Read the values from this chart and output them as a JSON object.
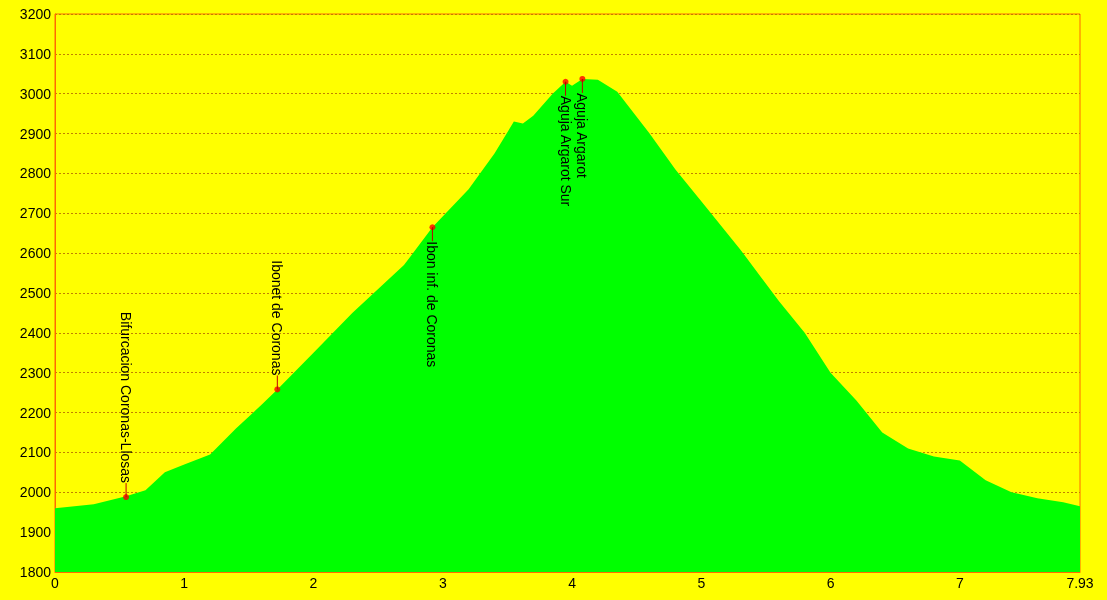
{
  "chart_data": {
    "type": "area",
    "x": [
      0,
      0.3,
      0.55,
      0.7,
      0.85,
      1.0,
      1.2,
      1.4,
      1.6,
      1.72,
      2.0,
      2.3,
      2.5,
      2.7,
      2.92,
      3.2,
      3.4,
      3.55,
      3.62,
      3.7,
      3.85,
      3.95,
      4.0,
      4.08,
      4.2,
      4.35,
      4.6,
      4.8,
      5.0,
      5.3,
      5.6,
      5.8,
      6.0,
      6.2,
      6.4,
      6.6,
      6.8,
      7.0,
      7.2,
      7.4,
      7.6,
      7.8,
      7.93
    ],
    "series": [
      {
        "color": "#00ff00",
        "values": [
          1960,
          1970,
          1990,
          2005,
          2050,
          2070,
          2095,
          2160,
          2220,
          2258,
          2350,
          2450,
          2510,
          2570,
          2665,
          2760,
          2850,
          2930,
          2925,
          2945,
          3000,
          3030,
          3020,
          3037,
          3035,
          3005,
          2900,
          2810,
          2730,
          2610,
          2480,
          2400,
          2300,
          2230,
          2150,
          2110,
          2090,
          2080,
          2030,
          2000,
          1985,
          1975,
          1965
        ]
      },
      {
        "type": "scatter",
        "color": "#ff0000",
        "x": [
          0.55,
          1.72,
          2.92,
          3.95,
          4.08
        ],
        "values": [
          1988,
          2258,
          2665,
          3030,
          3037
        ]
      }
    ],
    "annotations": [
      {
        "text": "Bifurcacion Coronas-Llosas",
        "x": 0.55,
        "y": 1988
      },
      {
        "text": "Ibonet de Coronas",
        "x": 1.72,
        "y": 2258
      },
      {
        "text": "Ibon inf. de Coronas",
        "x": 2.92,
        "y": 2665
      },
      {
        "text": "Aguja Argarot Sur",
        "x": 3.95,
        "y": 3030
      },
      {
        "text": "Aguja Argarot",
        "x": 4.08,
        "y": 3037
      }
    ],
    "xlim": [
      0,
      7.93
    ],
    "xticks": [
      0,
      1,
      2,
      3,
      4,
      5,
      6,
      7,
      7.93
    ],
    "ylim": [
      1800,
      3200
    ],
    "yticks": [
      1800,
      1900,
      2000,
      2100,
      2200,
      2300,
      2400,
      2500,
      2600,
      2700,
      2800,
      2900,
      3000,
      3100,
      3200
    ],
    "grid": "y"
  }
}
